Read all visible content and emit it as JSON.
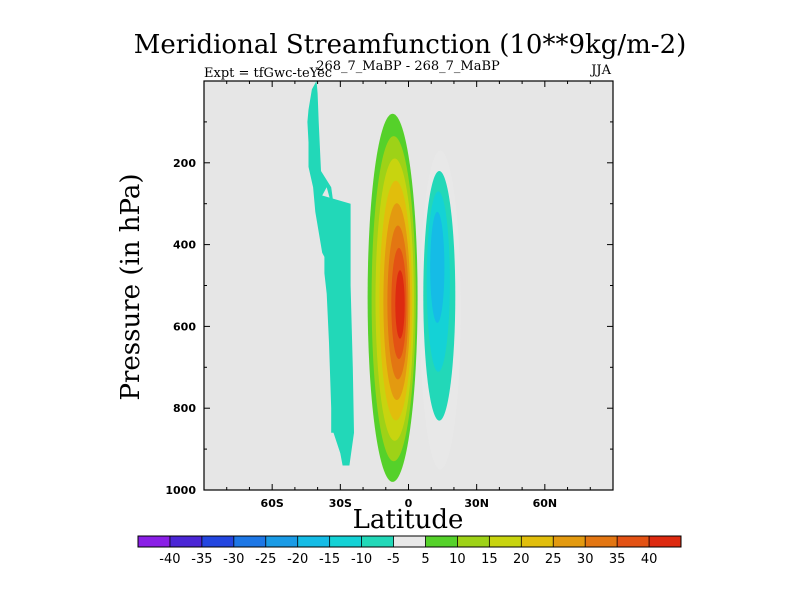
{
  "chart_data": {
    "type": "contour",
    "title": "Meridional Streamfunction (10**9kg/m-2)",
    "subtitle_left": "Expt = tfGwc-teYec",
    "subtitle_center": "268_7_MaBP - 268_7_MaBP",
    "subtitle_right": "JJA",
    "xlabel": "Latitude",
    "ylabel": "Pressure (in hPa)",
    "xlim": [
      -90,
      90
    ],
    "ylim": [
      1000,
      0
    ],
    "x_ticks": [
      {
        "value": -60,
        "label": "60S"
      },
      {
        "value": -30,
        "label": "30S"
      },
      {
        "value": 0,
        "label": "0"
      },
      {
        "value": 30,
        "label": "30N"
      },
      {
        "value": 60,
        "label": "60N"
      }
    ],
    "y_ticks": [
      {
        "value": 200,
        "label": "200"
      },
      {
        "value": 400,
        "label": "400"
      },
      {
        "value": 600,
        "label": "600"
      },
      {
        "value": 800,
        "label": "800"
      },
      {
        "value": 1000,
        "label": "1000"
      }
    ],
    "background_color": "#e6e6e6",
    "colorbar": {
      "labels": [
        "-40",
        "-35",
        "-30",
        "-25",
        "-20",
        "-15",
        "-10",
        "-5",
        "5",
        "10",
        "15",
        "20",
        "25",
        "30",
        "35",
        "40"
      ],
      "colors": [
        "#8a1fe6",
        "#4b26d6",
        "#2346e0",
        "#1d77e6",
        "#1a9be6",
        "#15bce6",
        "#14d2d6",
        "#22d8b8",
        "#e8e8e8",
        "#55d12a",
        "#9ed217",
        "#c8d40f",
        "#e1be0c",
        "#e39a10",
        "#e37612",
        "#e35214",
        "#dd2a10"
      ]
    },
    "regions": [
      {
        "name": "southern-weak-negative",
        "value_bin": -5,
        "color": "#22d8b8",
        "lat": [
          -25.5,
          -25.5,
          -24.5,
          -24,
          -26,
          -29,
          -30,
          -33,
          -34,
          -34,
          -35,
          -36,
          -37,
          -37,
          -38,
          -41,
          -42,
          -44,
          -44,
          -44.5,
          -44,
          -42.5,
          -40.5,
          -40,
          -39.5,
          -38.5,
          -34,
          -33,
          -33,
          -36,
          -38
        ],
        "p": [
          300,
          500,
          700,
          860,
          940,
          940,
          910,
          860,
          860,
          800,
          640,
          520,
          470,
          430,
          420,
          320,
          260,
          210,
          150,
          100,
          70,
          20,
          0,
          30,
          100,
          220,
          260,
          300,
          320,
          260,
          280
        ]
      },
      {
        "name": "equatorial-positive-cell",
        "peak_value": 40,
        "center_lat": -3,
        "center_p": 550,
        "lat_range": [
          -18,
          4
        ],
        "p_range": [
          80,
          980
        ]
      },
      {
        "name": "northern-negative-cell",
        "peak_value": -20,
        "center_lat": 12,
        "center_p": 400,
        "lat_range": [
          5,
          23
        ],
        "p_range": [
          170,
          950
        ]
      }
    ]
  }
}
